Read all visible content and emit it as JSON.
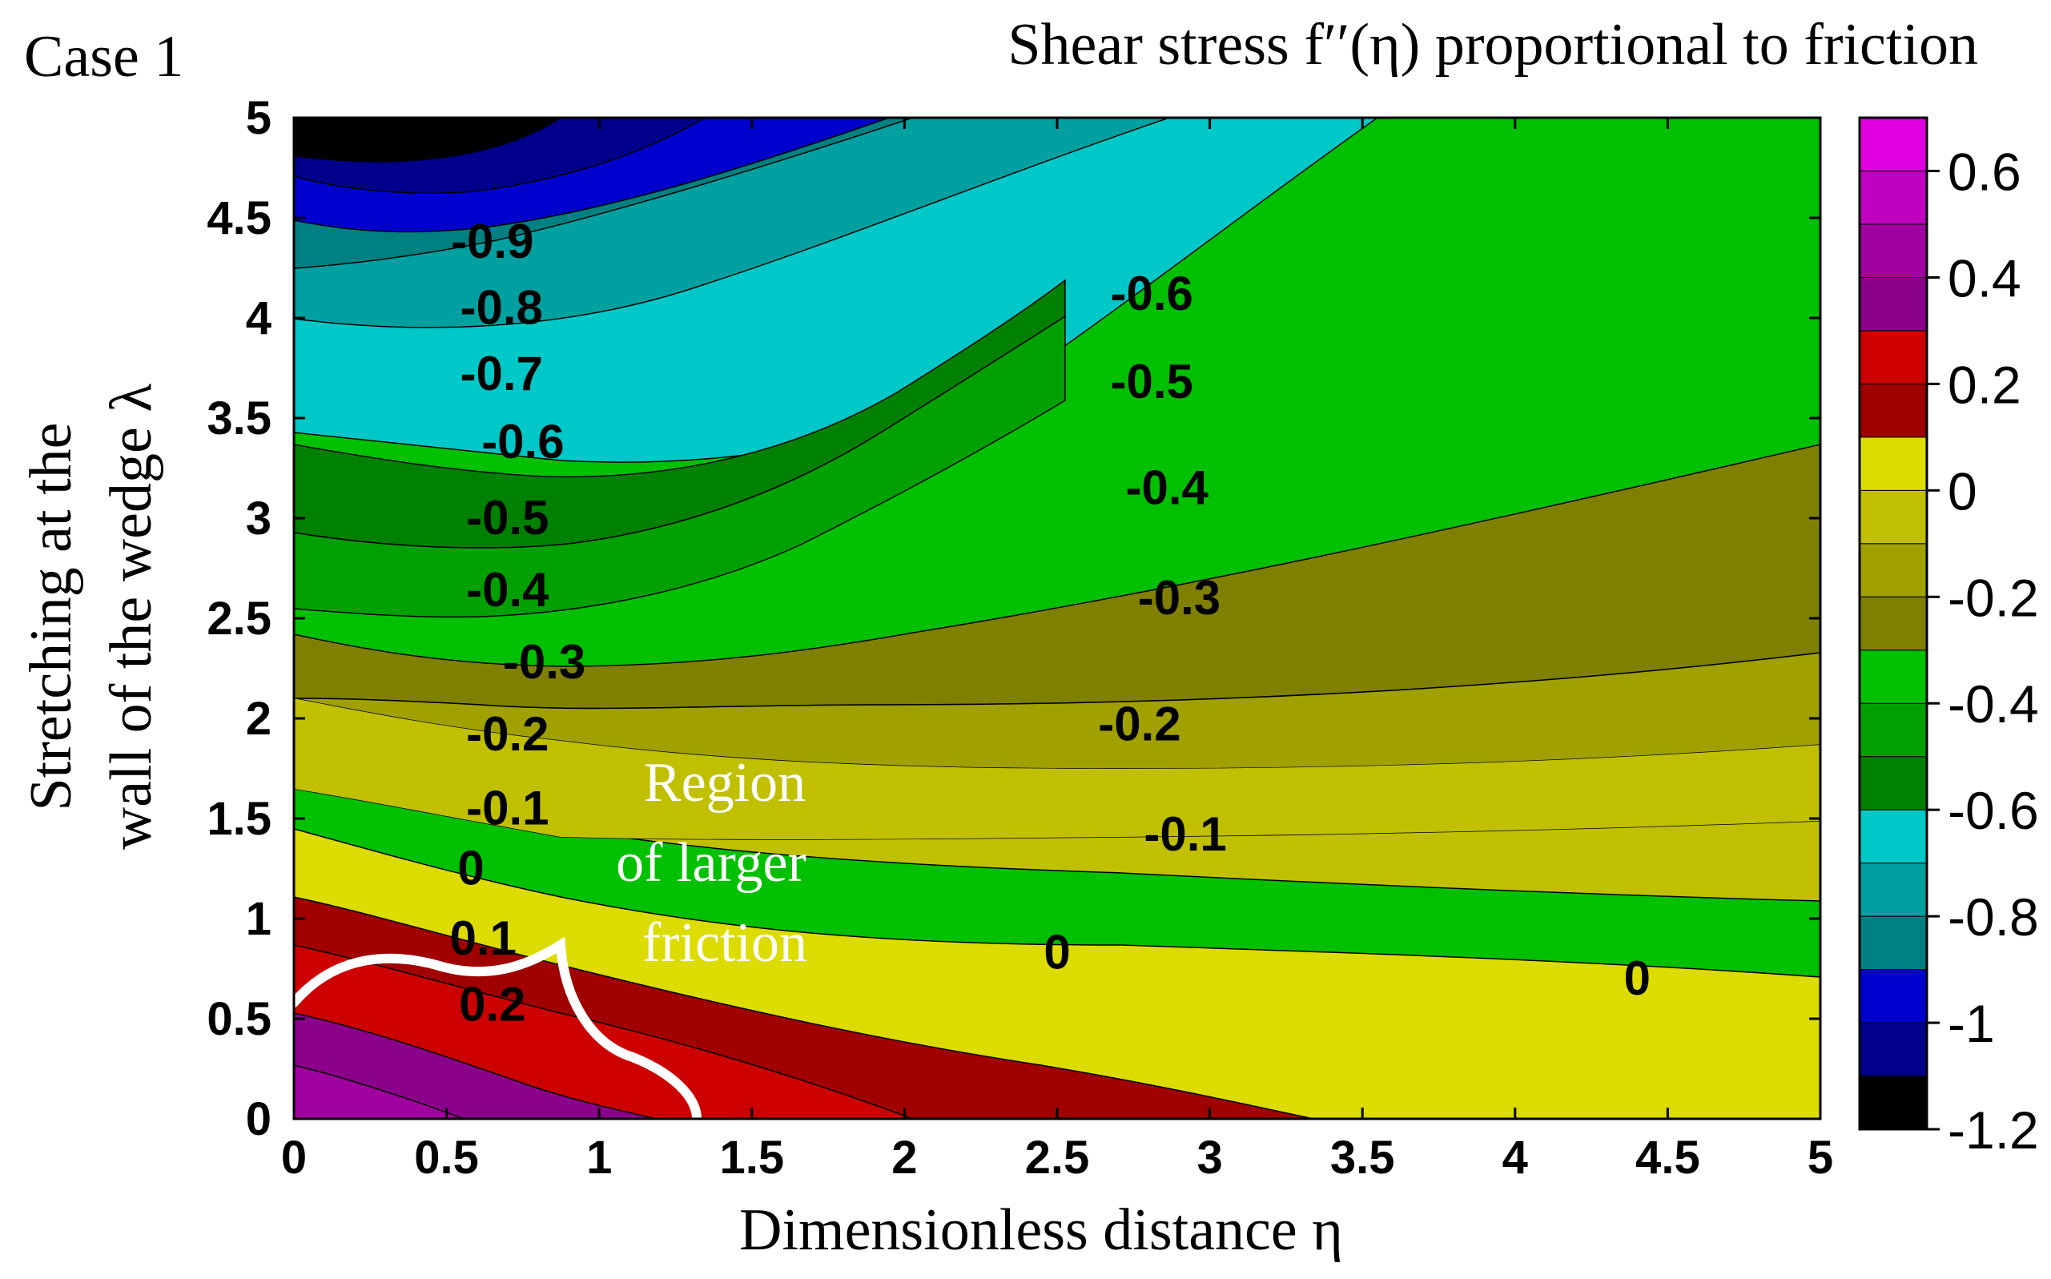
{
  "chart_data": {
    "type": "contour",
    "case_label": "Case 1",
    "title": "Shear stress f′′(η) proportional to friction",
    "xlabel": "Dimensionless distance η",
    "ylabel_line1": "Stretching at the",
    "ylabel_line2": "wall of the wedge λ",
    "xlim": [
      0,
      5
    ],
    "ylim": [
      0,
      5
    ],
    "x_ticks": [
      "0",
      "0.5",
      "1",
      "1.5",
      "2",
      "2.5",
      "3",
      "3.5",
      "4",
      "4.5",
      "5"
    ],
    "y_ticks": [
      "0",
      "0.5",
      "1",
      "1.5",
      "2",
      "2.5",
      "3",
      "3.5",
      "4",
      "4.5",
      "5"
    ],
    "colorbar": {
      "range": [
        -1.2,
        0.7
      ],
      "ticks": [
        "0.6",
        "0.4",
        "0.2",
        "0",
        "-0.2",
        "-0.4",
        "-0.6",
        "-0.8",
        "-1",
        "-1.2"
      ],
      "levels": [
        -1.2,
        -1.1,
        -1.0,
        -0.9,
        -0.8,
        -0.7,
        -0.6,
        -0.5,
        -0.4,
        -0.3,
        -0.2,
        -0.1,
        0.0,
        0.1,
        0.2,
        0.3,
        0.4,
        0.5,
        0.6,
        0.7
      ],
      "colors": [
        "#000000",
        "#00008b",
        "#0000cd",
        "#008080",
        "#00a0a0",
        "#00c8c8",
        "#008000",
        "#00a000",
        "#00c000",
        "#808000",
        "#a0a000",
        "#c0c000",
        "#dcdc00",
        "#a00000",
        "#cc0000",
        "#8b008b",
        "#a000a0",
        "#c000c0",
        "#e000e0"
      ]
    },
    "contour_labels": [
      {
        "text": "-0.9",
        "x": 0.65,
        "y": 4.38
      },
      {
        "text": "-0.8",
        "x": 0.68,
        "y": 4.05
      },
      {
        "text": "-0.7",
        "x": 0.68,
        "y": 3.72
      },
      {
        "text": "-0.6",
        "x": 0.75,
        "y": 3.38
      },
      {
        "text": "-0.5",
        "x": 0.7,
        "y": 3.0
      },
      {
        "text": "-0.4",
        "x": 0.7,
        "y": 2.64
      },
      {
        "text": "-0.3",
        "x": 0.82,
        "y": 2.28
      },
      {
        "text": "-0.2",
        "x": 0.7,
        "y": 1.92
      },
      {
        "text": "-0.1",
        "x": 0.7,
        "y": 1.55
      },
      {
        "text": "0",
        "x": 0.58,
        "y": 1.25
      },
      {
        "text": "0.1",
        "x": 0.62,
        "y": 0.9
      },
      {
        "text": "0.2",
        "x": 0.65,
        "y": 0.57
      },
      {
        "text": "-0.6",
        "x": 2.81,
        "y": 4.12
      },
      {
        "text": "-0.5",
        "x": 2.81,
        "y": 3.68
      },
      {
        "text": "-0.4",
        "x": 2.86,
        "y": 3.15
      },
      {
        "text": "-0.3",
        "x": 2.9,
        "y": 2.6
      },
      {
        "text": "-0.2",
        "x": 2.77,
        "y": 1.97
      },
      {
        "text": "-0.1",
        "x": 2.92,
        "y": 1.42
      },
      {
        "text": "0",
        "x": 2.5,
        "y": 0.83
      },
      {
        "text": "0",
        "x": 4.4,
        "y": 0.7
      }
    ],
    "annotation": [
      "Region",
      "of larger",
      "friction"
    ]
  }
}
